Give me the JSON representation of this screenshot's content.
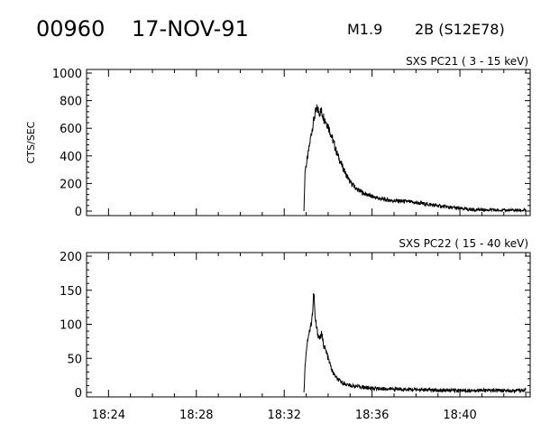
{
  "header": {
    "event_id": "00960",
    "date": "17-NOV-91",
    "goes_class": "M1.9",
    "optical": "2B (S12E78)"
  },
  "chart_data": [
    {
      "type": "line",
      "title": "SXS PC21  (  3 - 15 keV)",
      "ylabel": "CTS/SEC",
      "xlabel": "",
      "x_ticks": [
        "18:24",
        "18:28",
        "18:32",
        "18:36",
        "18:40"
      ],
      "xlim": [
        "18:23",
        "18:43.2"
      ],
      "ylim": [
        0,
        1000
      ],
      "y_ticks": [
        0,
        200,
        400,
        600,
        800,
        1000
      ],
      "grid": false,
      "series": [
        {
          "x": [
            "18:32.9",
            "18:32.95",
            "18:33.0",
            "18:33.1",
            "18:33.2",
            "18:33.3",
            "18:33.4",
            "18:33.5",
            "18:33.6",
            "18:33.7",
            "18:33.8",
            "18:34.0",
            "18:34.2",
            "18:34.4",
            "18:34.6",
            "18:34.8",
            "18:35.0",
            "18:35.3",
            "18:35.6",
            "18:36.0",
            "18:36.5",
            "18:37.0",
            "18:37.5",
            "18:38.0",
            "18:38.5",
            "18:39.0",
            "18:39.5",
            "18:40.0",
            "18:40.5",
            "18:41.0",
            "18:41.5",
            "18:42.0",
            "18:42.5",
            "18:43.0"
          ],
          "values": [
            0,
            300,
            330,
            420,
            530,
            620,
            700,
            740,
            720,
            720,
            680,
            620,
            520,
            420,
            340,
            270,
            210,
            160,
            130,
            105,
            85,
            75,
            70,
            60,
            50,
            38,
            28,
            18,
            12,
            9,
            7,
            5,
            5,
            5
          ]
        }
      ]
    },
    {
      "type": "line",
      "title": "SXS PC22  ( 15 - 40 keV)",
      "ylabel": "",
      "xlabel": "",
      "x_ticks": [
        "18:24",
        "18:28",
        "18:32",
        "18:36",
        "18:40"
      ],
      "xlim": [
        "18:23",
        "18:43.2"
      ],
      "ylim": [
        0,
        200
      ],
      "y_ticks": [
        0,
        50,
        100,
        150,
        200
      ],
      "grid": false,
      "series": [
        {
          "x": [
            "18:32.9",
            "18:32.95",
            "18:33.0",
            "18:33.1",
            "18:33.2",
            "18:33.3",
            "18:33.35",
            "18:33.4",
            "18:33.5",
            "18:33.6",
            "18:33.7",
            "18:33.8",
            "18:34.0",
            "18:34.2",
            "18:34.4",
            "18:34.6",
            "18:34.8",
            "18:35.0",
            "18:35.5",
            "18:36.0",
            "18:37.0",
            "18:38.0",
            "18:39.0",
            "18:40.0",
            "18:41.0",
            "18:42.0",
            "18:43.0"
          ],
          "values": [
            0,
            40,
            60,
            85,
            95,
            120,
            150,
            110,
            90,
            80,
            85,
            70,
            50,
            30,
            20,
            15,
            12,
            10,
            8,
            6,
            5,
            4,
            3,
            3,
            3,
            3,
            3
          ]
        }
      ]
    }
  ]
}
